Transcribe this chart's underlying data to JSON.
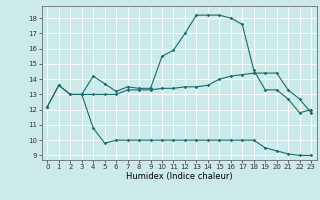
{
  "title": "",
  "xlabel": "Humidex (Indice chaleur)",
  "bg_color": "#cceaea",
  "line_color": "#1a6b6b",
  "grid_color": "#ffffff",
  "xlim": [
    -0.5,
    23.5
  ],
  "ylim": [
    8.7,
    18.8
  ],
  "yticks": [
    9,
    10,
    11,
    12,
    13,
    14,
    15,
    16,
    17,
    18
  ],
  "xticks": [
    0,
    1,
    2,
    3,
    4,
    5,
    6,
    7,
    8,
    9,
    10,
    11,
    12,
    13,
    14,
    15,
    16,
    17,
    18,
    19,
    20,
    21,
    22,
    23
  ],
  "line1_x": [
    0,
    1,
    2,
    3,
    4,
    5,
    6,
    7,
    8,
    9,
    10,
    11,
    12,
    13,
    14,
    15,
    16,
    17,
    18,
    19,
    20,
    21,
    22,
    23
  ],
  "line1_y": [
    12.2,
    13.6,
    13.0,
    13.0,
    14.2,
    13.7,
    13.2,
    13.5,
    13.4,
    13.4,
    15.5,
    15.9,
    17.0,
    18.2,
    18.2,
    18.2,
    18.0,
    17.6,
    14.6,
    13.3,
    13.3,
    12.7,
    11.8,
    12.0
  ],
  "line2_x": [
    0,
    1,
    2,
    3,
    4,
    5,
    6,
    7,
    8,
    9,
    10,
    11,
    12,
    13,
    14,
    15,
    16,
    17,
    18,
    19,
    20,
    21,
    22,
    23
  ],
  "line2_y": [
    12.2,
    13.6,
    13.0,
    13.0,
    13.0,
    13.0,
    13.0,
    13.3,
    13.3,
    13.3,
    13.4,
    13.4,
    13.5,
    13.5,
    13.6,
    14.0,
    14.2,
    14.3,
    14.4,
    14.4,
    14.4,
    13.3,
    12.7,
    11.8
  ],
  "line3_x": [
    3,
    4,
    5,
    6,
    7,
    8,
    9,
    10,
    11,
    12,
    13,
    14,
    15,
    16,
    17,
    18,
    19,
    20,
    21,
    22,
    23
  ],
  "line3_y": [
    13.0,
    10.8,
    9.8,
    10.0,
    10.0,
    10.0,
    10.0,
    10.0,
    10.0,
    10.0,
    10.0,
    10.0,
    10.0,
    10.0,
    10.0,
    10.0,
    9.5,
    9.3,
    9.1,
    9.0,
    9.0
  ],
  "tick_fontsize": 5.0,
  "xlabel_fontsize": 6.0
}
